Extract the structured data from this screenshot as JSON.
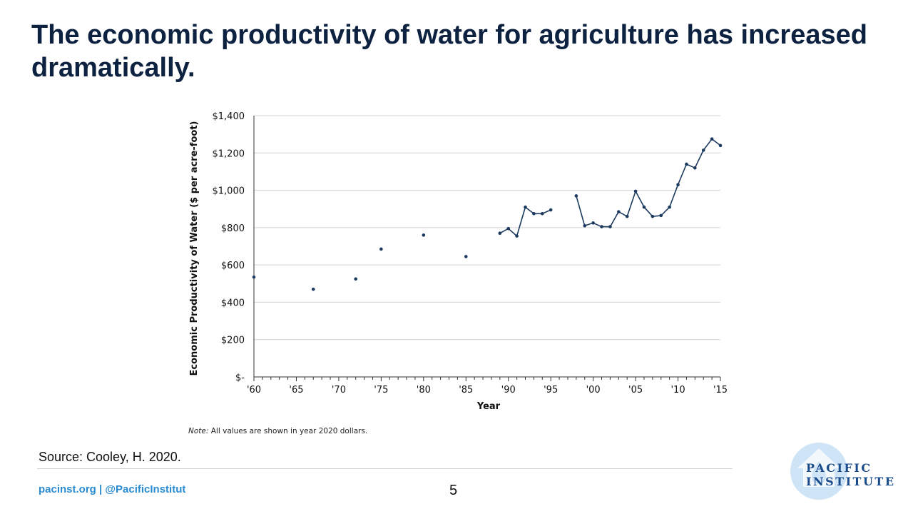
{
  "title": "The economic productivity of water for agriculture has increased dramatically.",
  "source": "Source: Cooley, H. 2020.",
  "footer": {
    "link_text": "pacinst.org | @PacificInstitut",
    "page_number": "5"
  },
  "logo": {
    "line1": "PACIFIC",
    "line2": "INSTITUTE",
    "icon": "water-drop-house-icon"
  },
  "colors": {
    "title": "#0d2240",
    "series": "#1c3a5e",
    "link": "#2a8bd0",
    "logo_text": "#1a4c8c",
    "logo_mark": "#cfe4f6"
  },
  "chart_data": {
    "type": "line",
    "ylabel": "Economic Productivity of Water ($ per acre-foot)",
    "xlabel": "Year",
    "note_prefix": "Note:",
    "note_text": " All values are shown in year 2020 dollars.",
    "xlim": [
      1960,
      2015
    ],
    "ylim": [
      0,
      1400
    ],
    "yticks": [
      0,
      200,
      400,
      600,
      800,
      1000,
      1200,
      1400
    ],
    "ytick_labels": [
      "$-",
      "$200",
      "$400",
      "$600",
      "$800",
      "$1,000",
      "$1,200",
      "$1,400"
    ],
    "xtick_labels_years": [
      1960,
      1965,
      1970,
      1975,
      1980,
      1985,
      1990,
      1995,
      2000,
      2005,
      2010,
      2015
    ],
    "xtick_labels": [
      "'60",
      "'65",
      "'70",
      "'75",
      "'80",
      "'85",
      "'90",
      "'95",
      "'00",
      "'05",
      "'10",
      "'15"
    ],
    "grid": "horizontal",
    "points_isolated": [
      {
        "x": 1960,
        "y": 535
      },
      {
        "x": 1967,
        "y": 470
      },
      {
        "x": 1972,
        "y": 525
      },
      {
        "x": 1975,
        "y": 685
      },
      {
        "x": 1980,
        "y": 760
      },
      {
        "x": 1985,
        "y": 645
      }
    ],
    "segments": [
      [
        {
          "x": 1989,
          "y": 770
        },
        {
          "x": 1990,
          "y": 795
        },
        {
          "x": 1991,
          "y": 755
        },
        {
          "x": 1992,
          "y": 910
        },
        {
          "x": 1993,
          "y": 875
        },
        {
          "x": 1994,
          "y": 875
        },
        {
          "x": 1995,
          "y": 895
        }
      ],
      [
        {
          "x": 1998,
          "y": 970
        },
        {
          "x": 1999,
          "y": 810
        },
        {
          "x": 2000,
          "y": 825
        },
        {
          "x": 2001,
          "y": 805
        },
        {
          "x": 2002,
          "y": 805
        },
        {
          "x": 2003,
          "y": 885
        },
        {
          "x": 2004,
          "y": 860
        },
        {
          "x": 2005,
          "y": 995
        },
        {
          "x": 2006,
          "y": 910
        },
        {
          "x": 2007,
          "y": 860
        },
        {
          "x": 2008,
          "y": 865
        },
        {
          "x": 2009,
          "y": 910
        },
        {
          "x": 2010,
          "y": 1030
        },
        {
          "x": 2011,
          "y": 1140
        },
        {
          "x": 2012,
          "y": 1120
        },
        {
          "x": 2013,
          "y": 1215
        },
        {
          "x": 2014,
          "y": 1275
        },
        {
          "x": 2015,
          "y": 1240
        }
      ]
    ]
  }
}
